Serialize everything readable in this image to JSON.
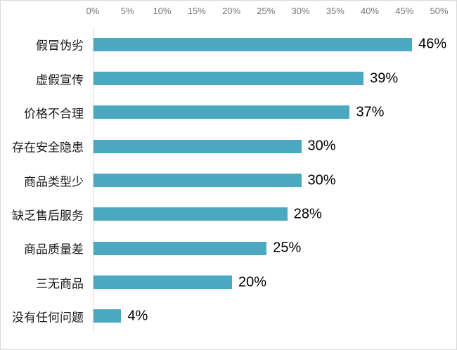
{
  "chart_data": {
    "type": "bar",
    "orientation": "horizontal",
    "title": "",
    "xlabel": "",
    "ylabel": "",
    "categories": [
      "假冒伪劣",
      "虚假宣传",
      "价格不合理",
      "存在安全隐患",
      "商品类型少",
      "缺乏售后服务",
      "商品质量差",
      "三无商品",
      "没有任何问题"
    ],
    "values": [
      46,
      39,
      37,
      30,
      30,
      28,
      25,
      20,
      4
    ],
    "value_labels": [
      "46%",
      "39%",
      "37%",
      "30%",
      "30%",
      "28%",
      "25%",
      "20%",
      "4%"
    ],
    "x_tick_labels": [
      "0%",
      "5%",
      "10%",
      "15%",
      "20%",
      "25%",
      "30%",
      "35%",
      "40%",
      "45%",
      "50%"
    ],
    "x_tick_values": [
      0,
      5,
      10,
      15,
      20,
      25,
      30,
      35,
      40,
      45,
      50
    ],
    "xlim": [
      0,
      50
    ],
    "grid": "off",
    "legend": "none",
    "axis_position": "top",
    "bar_color": "#4AA9C1",
    "axis_line_color": "#D9D9D9",
    "tick_label_color": "#757575",
    "category_label_color": "#1A1A1A",
    "value_label_color": "#000000",
    "background_color": "#FFFFFF",
    "border_color": "#D9D9D9"
  }
}
